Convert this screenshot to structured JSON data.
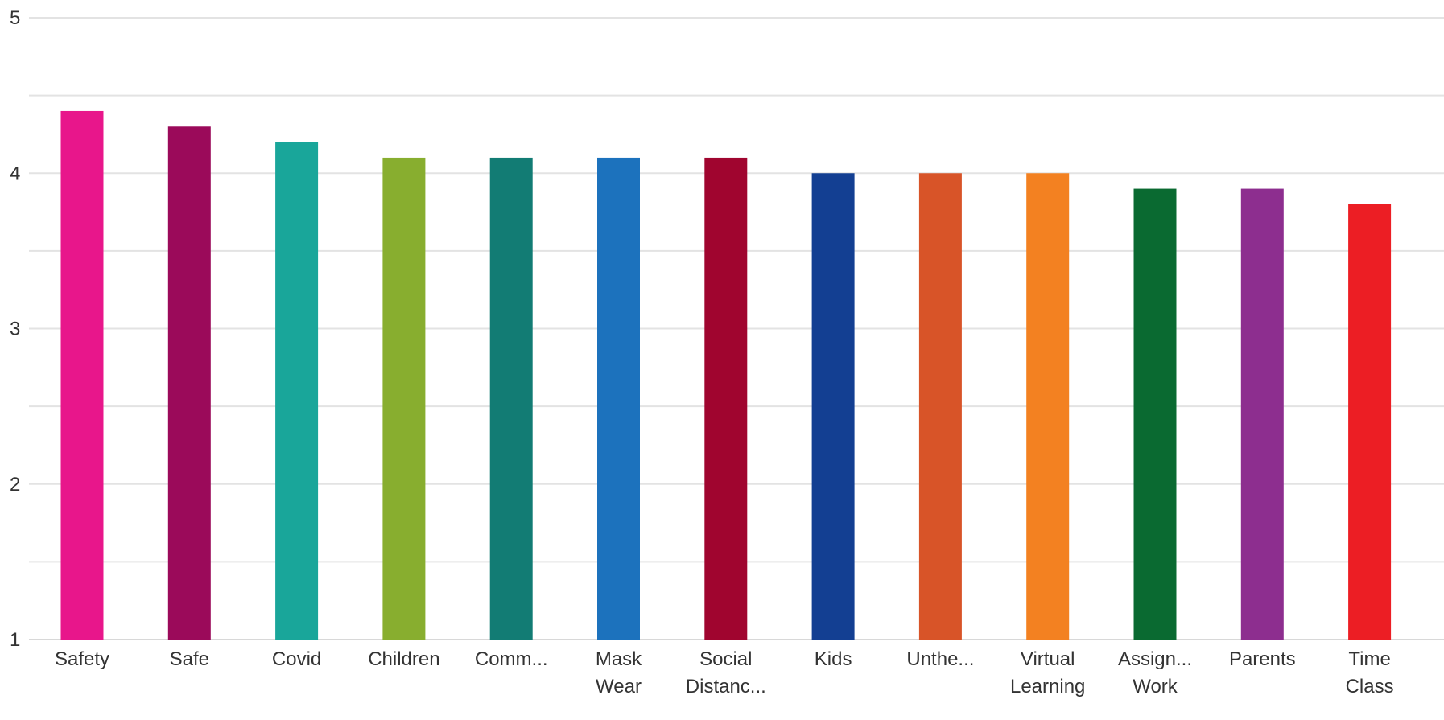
{
  "chart_data": {
    "type": "bar",
    "title": "",
    "xlabel": "",
    "ylabel": "",
    "ylim": [
      1,
      5
    ],
    "yticks": [
      1,
      2,
      3,
      4,
      5
    ],
    "grid": true,
    "legend": "none",
    "categories": [
      [
        "Safety"
      ],
      [
        "Safe"
      ],
      [
        "Covid"
      ],
      [
        "Children"
      ],
      [
        "Comm..."
      ],
      [
        "Mask",
        "Wear"
      ],
      [
        "Social",
        "Distanc..."
      ],
      [
        "Kids"
      ],
      [
        "Unthe..."
      ],
      [
        "Virtual",
        "Learning"
      ],
      [
        "Assign...",
        "Work"
      ],
      [
        "Parents"
      ],
      [
        "Time",
        "Class"
      ]
    ],
    "values": [
      4.4,
      4.3,
      4.2,
      4.1,
      4.1,
      4.1,
      4.1,
      4.0,
      4.0,
      4.0,
      3.9,
      3.9,
      3.8
    ],
    "colors": [
      "#E8168B",
      "#9B0A5A",
      "#19A69A",
      "#88AE2F",
      "#127C74",
      "#1C72BD",
      "#A0052F",
      "#133F92",
      "#D85428",
      "#F38121",
      "#0A6A31",
      "#8D2E8F",
      "#EC1E24"
    ]
  }
}
